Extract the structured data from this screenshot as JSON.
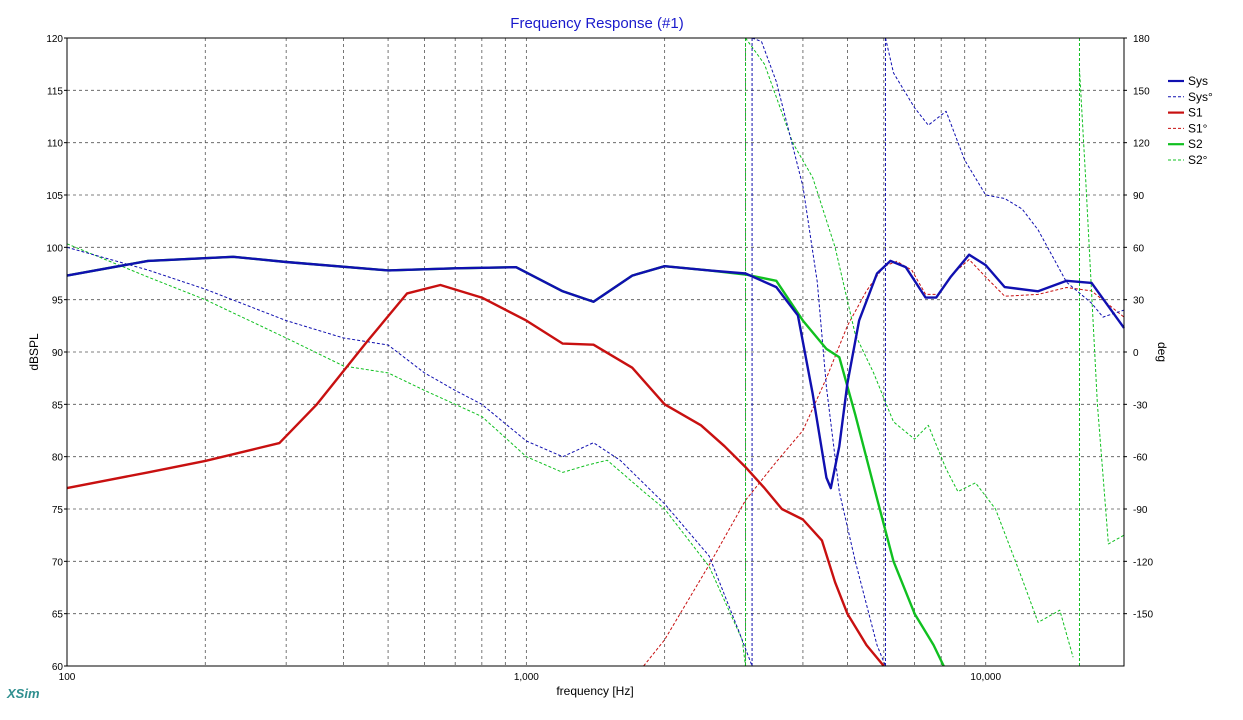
{
  "brand": "XSim",
  "chart_data": {
    "type": "line",
    "title": "Frequency Response (#1)",
    "xlabel": "frequency [Hz]",
    "ylabel": "dBSPL",
    "y2label": "deg",
    "xscale": "log",
    "xlim": [
      100,
      20000
    ],
    "ylim": [
      60,
      120
    ],
    "y2lim": [
      -180,
      180
    ],
    "x_tick_labels": [
      {
        "value": 100,
        "label": "100"
      },
      {
        "value": 1000,
        "label": "1,000"
      },
      {
        "value": 10000,
        "label": "10,000"
      }
    ],
    "y_ticks": [
      60,
      65,
      70,
      75,
      80,
      85,
      90,
      95,
      100,
      105,
      110,
      115,
      120
    ],
    "y2_ticks": [
      -150,
      -120,
      -90,
      -60,
      -30,
      0,
      30,
      60,
      90,
      120,
      150,
      180
    ],
    "grid": true,
    "legend_position": "top-right",
    "series": [
      {
        "name": "Sys",
        "axis": "left",
        "color": "#1010b0",
        "style": "solid",
        "width": 2.4,
        "points": [
          [
            100,
            97.3
          ],
          [
            150,
            98.7
          ],
          [
            230,
            99.1
          ],
          [
            300,
            98.6
          ],
          [
            500,
            97.8
          ],
          [
            700,
            98.0
          ],
          [
            950,
            98.1
          ],
          [
            1200,
            95.8
          ],
          [
            1400,
            94.8
          ],
          [
            1700,
            97.3
          ],
          [
            2000,
            98.2
          ],
          [
            2500,
            97.8
          ],
          [
            3000,
            97.5
          ],
          [
            3500,
            96.2
          ],
          [
            3900,
            93.5
          ],
          [
            4200,
            86
          ],
          [
            4500,
            78
          ],
          [
            4600,
            77
          ],
          [
            4800,
            81
          ],
          [
            5000,
            87
          ],
          [
            5300,
            93
          ],
          [
            5800,
            97.5
          ],
          [
            6200,
            98.7
          ],
          [
            6700,
            98.1
          ],
          [
            7400,
            95.2
          ],
          [
            7800,
            95.2
          ],
          [
            8400,
            97.2
          ],
          [
            9200,
            99.3
          ],
          [
            10000,
            98.3
          ],
          [
            11000,
            96.2
          ],
          [
            13000,
            95.8
          ],
          [
            15000,
            96.8
          ],
          [
            17000,
            96.6
          ],
          [
            20000,
            92.3
          ]
        ]
      },
      {
        "name": "Sys°",
        "axis": "right",
        "color": "#1010b0",
        "style": "dashed",
        "width": 1,
        "points": [
          [
            100,
            60
          ],
          [
            150,
            47
          ],
          [
            200,
            36
          ],
          [
            300,
            18
          ],
          [
            400,
            8
          ],
          [
            500,
            4
          ],
          [
            600,
            -12
          ],
          [
            700,
            -22
          ],
          [
            800,
            -30
          ],
          [
            1000,
            -51
          ],
          [
            1200,
            -60
          ],
          [
            1400,
            -52
          ],
          [
            1600,
            -62
          ],
          [
            2000,
            -87
          ],
          [
            2500,
            -117
          ],
          [
            2900,
            -160
          ],
          [
            3100,
            -180
          ],
          [
            3100,
            180
          ],
          [
            3250,
            178
          ],
          [
            3500,
            155
          ],
          [
            4000,
            95
          ],
          [
            4300,
            40
          ],
          [
            4500,
            -20
          ],
          [
            4800,
            -80
          ],
          [
            5200,
            -120
          ],
          [
            5800,
            -168
          ],
          [
            6050,
            -180
          ],
          [
            6050,
            180
          ],
          [
            6300,
            160
          ],
          [
            7000,
            140
          ],
          [
            7500,
            130
          ],
          [
            8200,
            138
          ],
          [
            9000,
            110
          ],
          [
            10000,
            90
          ],
          [
            11000,
            88
          ],
          [
            12000,
            82
          ],
          [
            13000,
            70
          ],
          [
            15000,
            40
          ],
          [
            17000,
            28
          ],
          [
            18000,
            20
          ],
          [
            20000,
            24
          ]
        ]
      },
      {
        "name": "S1",
        "axis": "left",
        "color": "#c81010",
        "style": "solid",
        "width": 2.4,
        "points": [
          [
            100,
            77
          ],
          [
            150,
            78.5
          ],
          [
            200,
            79.6
          ],
          [
            290,
            81.3
          ],
          [
            350,
            85
          ],
          [
            450,
            91
          ],
          [
            550,
            95.6
          ],
          [
            650,
            96.4
          ],
          [
            800,
            95.2
          ],
          [
            1000,
            93
          ],
          [
            1200,
            90.8
          ],
          [
            1400,
            90.7
          ],
          [
            1700,
            88.5
          ],
          [
            2000,
            85
          ],
          [
            2400,
            83
          ],
          [
            2700,
            81
          ],
          [
            3000,
            79
          ],
          [
            3300,
            77
          ],
          [
            3600,
            75
          ],
          [
            4000,
            74
          ],
          [
            4400,
            72
          ],
          [
            4700,
            68
          ],
          [
            5000,
            65
          ],
          [
            5500,
            62
          ],
          [
            6000,
            60
          ]
        ]
      },
      {
        "name": "S1°",
        "axis": "right",
        "color": "#c81010",
        "style": "dashed",
        "width": 1,
        "points": [
          [
            1800,
            -180
          ],
          [
            2000,
            -165
          ],
          [
            2500,
            -122
          ],
          [
            3000,
            -85
          ],
          [
            3500,
            -63
          ],
          [
            4000,
            -45
          ],
          [
            4500,
            -15
          ],
          [
            5000,
            15
          ],
          [
            5500,
            35
          ],
          [
            6000,
            49
          ],
          [
            6400,
            52
          ],
          [
            6900,
            47
          ],
          [
            7400,
            33
          ],
          [
            7900,
            33
          ],
          [
            8500,
            45
          ],
          [
            9200,
            53
          ],
          [
            10000,
            43
          ],
          [
            11000,
            32
          ],
          [
            13000,
            33
          ],
          [
            15000,
            37
          ],
          [
            17000,
            35
          ],
          [
            20000,
            20
          ]
        ]
      },
      {
        "name": "S2",
        "axis": "left",
        "color": "#10c020",
        "style": "solid",
        "width": 2.4,
        "points": [
          [
            100,
            97.3
          ],
          [
            150,
            98.7
          ],
          [
            230,
            99.1
          ],
          [
            300,
            98.6
          ],
          [
            500,
            97.8
          ],
          [
            700,
            98.0
          ],
          [
            950,
            98.1
          ],
          [
            1200,
            95.8
          ],
          [
            1400,
            94.8
          ],
          [
            1700,
            97.3
          ],
          [
            2000,
            98.2
          ],
          [
            2500,
            97.8
          ],
          [
            3000,
            97.4
          ],
          [
            3500,
            96.8
          ],
          [
            4000,
            93
          ],
          [
            4500,
            90.3
          ],
          [
            4800,
            89.5
          ],
          [
            5200,
            84
          ],
          [
            5800,
            76
          ],
          [
            6300,
            70
          ],
          [
            7000,
            65
          ],
          [
            7700,
            62
          ],
          [
            8100,
            60
          ]
        ]
      },
      {
        "name": "S2°",
        "axis": "right",
        "color": "#10c020",
        "style": "dashed",
        "width": 1,
        "points": [
          [
            100,
            62
          ],
          [
            150,
            43
          ],
          [
            200,
            30
          ],
          [
            300,
            8
          ],
          [
            400,
            -8
          ],
          [
            500,
            -12
          ],
          [
            600,
            -22
          ],
          [
            700,
            -30
          ],
          [
            800,
            -37
          ],
          [
            1000,
            -60
          ],
          [
            1200,
            -69
          ],
          [
            1350,
            -65
          ],
          [
            1500,
            -62
          ],
          [
            1800,
            -80
          ],
          [
            2000,
            -90
          ],
          [
            2500,
            -123
          ],
          [
            2950,
            -165
          ],
          [
            3000,
            -180
          ],
          [
            3000,
            180
          ],
          [
            3300,
            165
          ],
          [
            3800,
            120
          ],
          [
            4200,
            100
          ],
          [
            4700,
            60
          ],
          [
            5200,
            10
          ],
          [
            5700,
            -12
          ],
          [
            6300,
            -40
          ],
          [
            7000,
            -50
          ],
          [
            7500,
            -42
          ],
          [
            8200,
            -67
          ],
          [
            8700,
            -80
          ],
          [
            9500,
            -75
          ],
          [
            10500,
            -90
          ],
          [
            12000,
            -130
          ],
          [
            13000,
            -155
          ],
          [
            14500,
            -148
          ],
          [
            15500,
            -175
          ],
          [
            16000,
            162
          ],
          [
            16500,
            100
          ],
          [
            17500,
            -30
          ],
          [
            18500,
            -110
          ],
          [
            20000,
            -105
          ]
        ]
      }
    ]
  }
}
